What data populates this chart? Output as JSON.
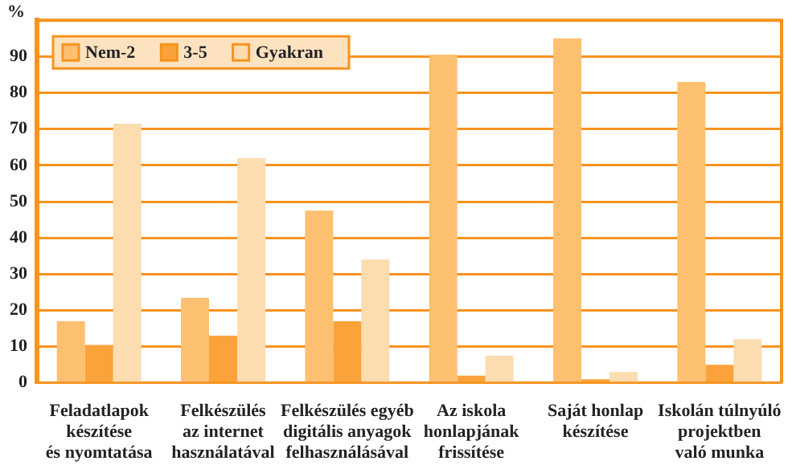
{
  "chart_data": {
    "type": "bar",
    "ylabel": "%",
    "categories": [
      "Feladatlapok\nkészítése\nés nyomtatása",
      "Felkészülés\naz internet\nhasználatával",
      "Felkészülés egyéb\ndigitális anyagok\nfelhasználásával",
      "Az iskola\nhonlapjának\nfrissítése",
      "Saját honlap\nkészítése",
      "Iskolán túlnyúló\nprojektben\nvaló munka"
    ],
    "series": [
      {
        "name": "Nem-2",
        "color": "#fdc071",
        "values": [
          17,
          23.5,
          47.5,
          90.5,
          95,
          83
        ]
      },
      {
        "name": "3-5",
        "color": "#fba23a",
        "values": [
          10.5,
          13,
          17,
          2,
          1,
          5
        ]
      },
      {
        "name": "Gyakran",
        "color": "#fddcb0",
        "values": [
          71.5,
          62,
          34,
          7.5,
          3,
          12
        ]
      }
    ],
    "ylim": [
      0,
      100
    ],
    "yticks": [
      0,
      10,
      20,
      30,
      40,
      50,
      60,
      70,
      80,
      90
    ],
    "grid": "y",
    "legend": "top left"
  }
}
